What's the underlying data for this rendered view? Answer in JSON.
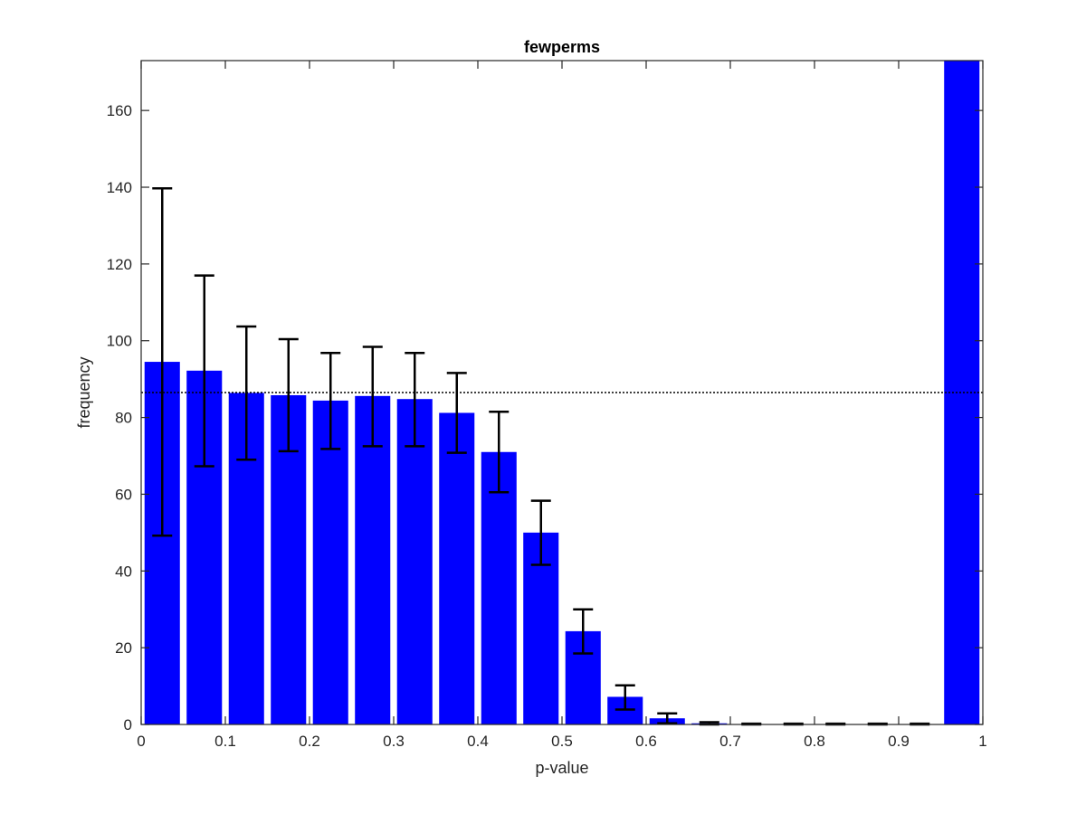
{
  "chart_data": {
    "type": "bar",
    "title": "fewperms",
    "xlabel": "p-value",
    "ylabel": "frequency",
    "xlim": [
      0,
      1
    ],
    "ylim": [
      0,
      173
    ],
    "x_ticks": [
      0,
      0.1,
      0.2,
      0.3,
      0.4,
      0.5,
      0.6,
      0.7,
      0.8,
      0.9,
      1
    ],
    "x_tick_labels": [
      "0",
      "0.1",
      "0.2",
      "0.3",
      "0.4",
      "0.5",
      "0.6",
      "0.7",
      "0.8",
      "0.9",
      "1"
    ],
    "y_ticks": [
      0,
      20,
      40,
      60,
      80,
      100,
      120,
      140,
      160
    ],
    "y_tick_labels": [
      "0",
      "20",
      "40",
      "60",
      "80",
      "100",
      "120",
      "140",
      "160"
    ],
    "bin_centers": [
      0.025,
      0.075,
      0.125,
      0.175,
      0.225,
      0.275,
      0.325,
      0.375,
      0.425,
      0.475,
      0.525,
      0.575,
      0.625,
      0.675,
      0.725,
      0.775,
      0.825,
      0.875,
      0.925,
      0.975
    ],
    "values": [
      94.5,
      92.2,
      86.4,
      85.8,
      84.4,
      85.6,
      84.8,
      81.2,
      71.0,
      50.0,
      24.3,
      7.2,
      1.6,
      0.3,
      0.1,
      0.1,
      0.1,
      0.1,
      0.1,
      173
    ],
    "error_low": [
      49.2,
      67.3,
      69.0,
      71.2,
      71.8,
      72.5,
      72.5,
      70.8,
      60.5,
      41.6,
      18.5,
      3.9,
      0.3,
      0,
      0,
      0,
      0,
      0,
      0,
      null
    ],
    "error_high": [
      139.7,
      117.0,
      103.7,
      100.4,
      96.8,
      98.4,
      96.8,
      91.6,
      81.5,
      58.3,
      30.0,
      10.2,
      2.9,
      0.6,
      0.2,
      0.2,
      0.2,
      0.2,
      0.2,
      null
    ],
    "reference_line": 86.5,
    "bar_color": "#0000ff",
    "error_color": "#000000",
    "grid": false,
    "legend": false
  }
}
